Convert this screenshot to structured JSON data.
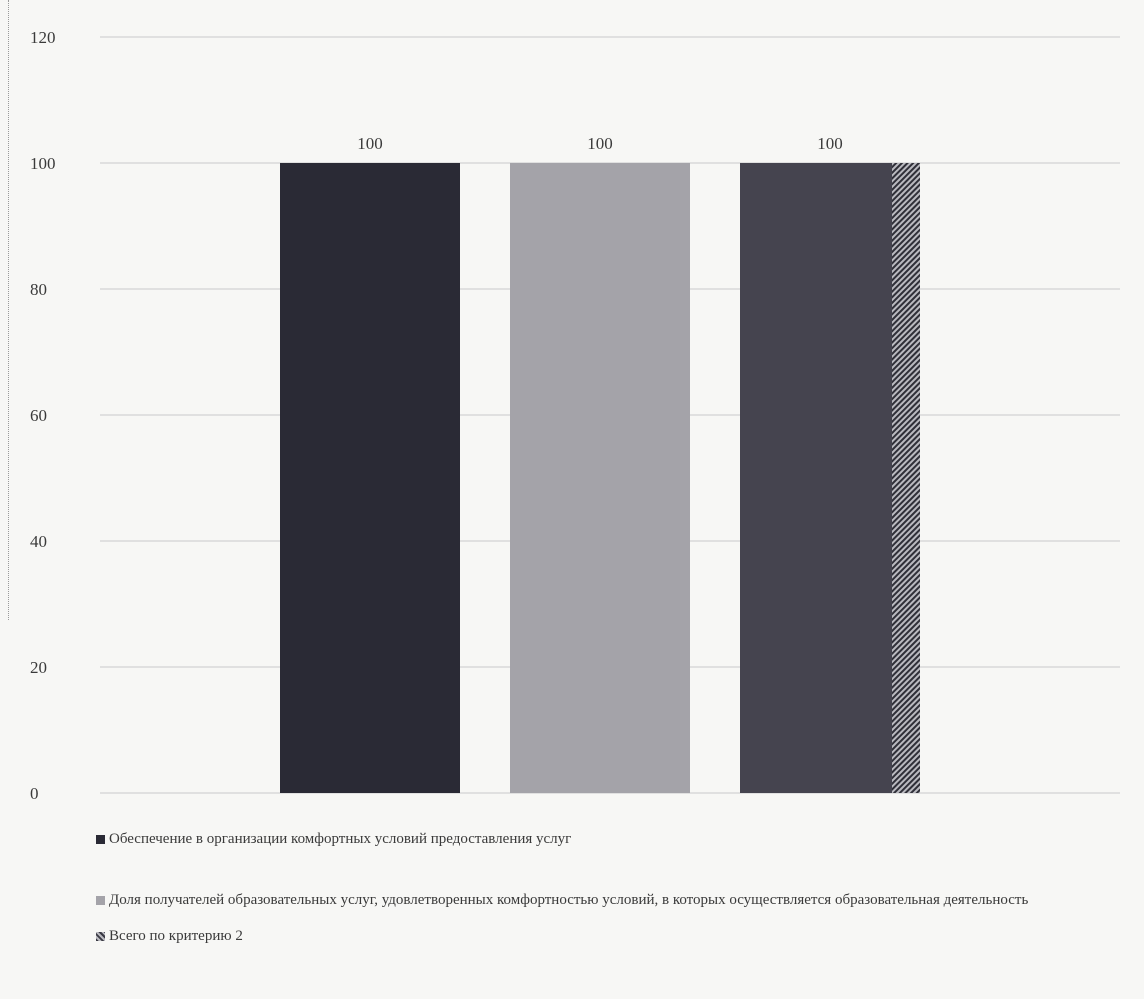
{
  "chart_data": {
    "type": "bar",
    "categories": [
      "",
      "",
      ""
    ],
    "series": [
      {
        "name": "Обеспечение в организации комфортных условий предоставления услуг",
        "values": [
          100,
          null,
          null
        ],
        "color": "#2a2a35"
      },
      {
        "name": "Доля получателей образовательных услуг, удовлетворенных комфортностью условий, в которых осуществляется образовательная деятельность",
        "values": [
          null,
          100,
          null
        ],
        "color": "#a4a3a9"
      },
      {
        "name": "Всего по критерию 2",
        "values": [
          null,
          null,
          100
        ],
        "color": "#45444f"
      }
    ],
    "data_labels": [
      "100",
      "100",
      "100"
    ],
    "ylim": [
      0,
      120
    ],
    "yticks": [
      "0",
      "20",
      "40",
      "60",
      "80",
      "100",
      "120"
    ],
    "grid": true,
    "legend": "bottom",
    "title": "",
    "xlabel": "",
    "ylabel": ""
  }
}
